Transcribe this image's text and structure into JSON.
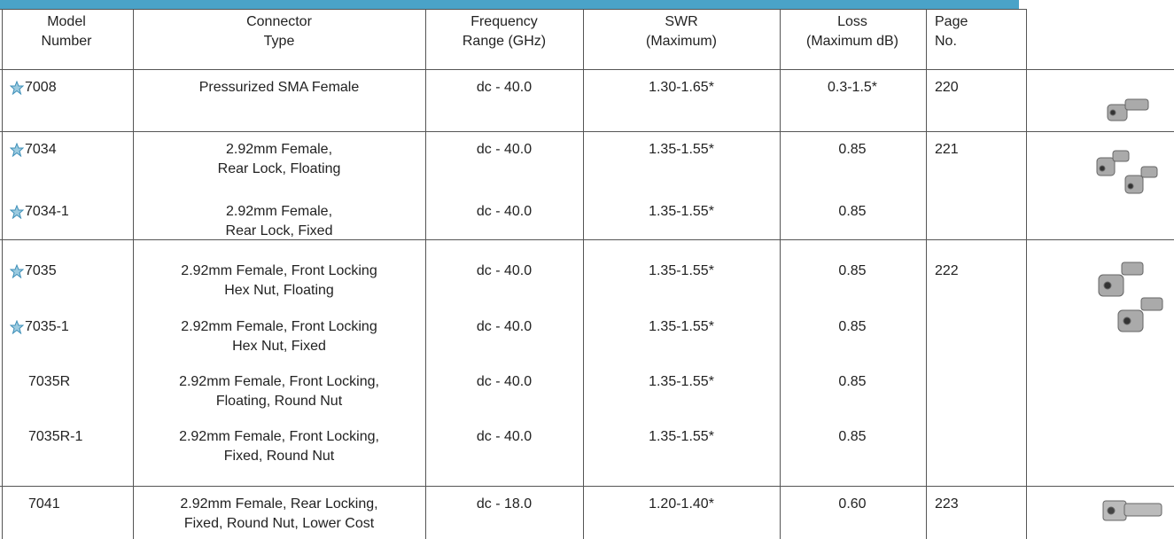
{
  "header": {
    "columns": [
      "Model\nNumber",
      "Connector\nType",
      "Frequency\nRange (GHz)",
      "SWR\n(Maximum)",
      "Loss\n(Maximum dB)",
      "Page\nNo."
    ]
  },
  "table": {
    "groups": [
      [
        {
          "model": "7008",
          "starred": true,
          "connector": "Pressurized SMA Female",
          "frequency": "dc - 40.0",
          "swr": "1.30-1.65*",
          "loss": "0.3-1.5*",
          "page": "220"
        }
      ],
      [
        {
          "model": "7034",
          "starred": true,
          "connector": "2.92mm Female,\nRear Lock, Floating",
          "frequency": "dc - 40.0",
          "swr": "1.35-1.55*",
          "loss": "0.85",
          "page": "221"
        },
        {
          "model": "7034-1",
          "starred": true,
          "connector": "2.92mm Female,\nRear Lock, Fixed",
          "frequency": "dc - 40.0",
          "swr": "1.35-1.55*",
          "loss": "0.85"
        }
      ],
      [
        {
          "model": "7035",
          "starred": true,
          "connector": "2.92mm Female, Front Locking\nHex Nut, Floating",
          "frequency": "dc - 40.0",
          "swr": "1.35-1.55*",
          "loss": "0.85",
          "page": "222"
        },
        {
          "model": "7035-1",
          "starred": true,
          "connector": "2.92mm Female, Front Locking\nHex Nut, Fixed",
          "frequency": "dc - 40.0",
          "swr": "1.35-1.55*",
          "loss": "0.85"
        },
        {
          "model": "7035R",
          "starred": false,
          "connector": "2.92mm Female, Front Locking,\nFloating, Round Nut",
          "frequency": "dc - 40.0",
          "swr": "1.35-1.55*",
          "loss": "0.85"
        },
        {
          "model": "7035R-1",
          "starred": false,
          "connector": "2.92mm Female, Front Locking,\nFixed, Round Nut",
          "frequency": "dc - 40.0",
          "swr": "1.35-1.55*",
          "loss": "0.85"
        }
      ],
      [
        {
          "model": "7041",
          "starred": false,
          "connector": "2.92mm Female, Rear Locking,\nFixed, Round Nut, Lower Cost",
          "frequency": "dc - 18.0",
          "swr": "1.20-1.40*",
          "loss": "0.60",
          "page": "223"
        }
      ]
    ]
  }
}
